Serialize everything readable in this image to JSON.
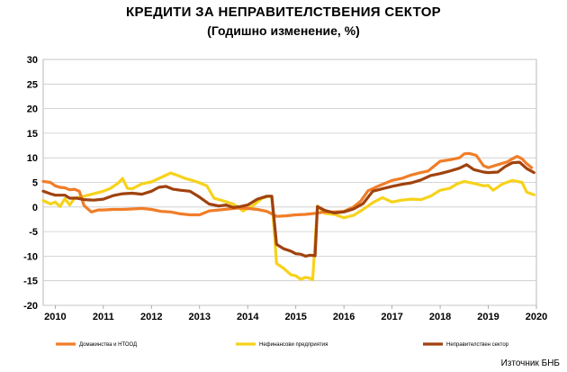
{
  "chart_data": {
    "type": "line",
    "title": "КРЕДИТИ ЗА НЕПРАВИТЕЛСТВЕНИЯ СЕКТОР",
    "subtitle": "(Годишно изменение, %)",
    "xlabel": "",
    "ylabel": "",
    "ylim": [
      -20,
      30
    ],
    "yticks": [
      30,
      25,
      20,
      15,
      10,
      5,
      0,
      -5,
      -10,
      -15,
      -20
    ],
    "xlim": [
      2009.75,
      2020.0
    ],
    "xticks": [
      2010,
      2011,
      2012,
      2013,
      2014,
      2015,
      2016,
      2017,
      2018,
      2019,
      2020
    ],
    "grid": "horizontal",
    "legend_position": "bottom",
    "source": "Източник БНБ",
    "series": [
      {
        "name": "Домакинства и НТООД",
        "color": "#F07D28",
        "x": [
          2009.75,
          2009.9,
          2010.0,
          2010.1,
          2010.2,
          2010.3,
          2010.4,
          2010.5,
          2010.6,
          2010.75,
          2010.9,
          2011.0,
          2011.2,
          2011.4,
          2011.6,
          2011.8,
          2012.0,
          2012.2,
          2012.4,
          2012.6,
          2012.8,
          2013.0,
          2013.2,
          2013.4,
          2013.6,
          2013.8,
          2014.0,
          2014.2,
          2014.4,
          2014.5,
          2014.6,
          2014.8,
          2015.0,
          2015.2,
          2015.4,
          2015.6,
          2015.8,
          2016.0,
          2016.2,
          2016.35,
          2016.5,
          2016.7,
          2016.9,
          2017.0,
          2017.2,
          2017.4,
          2017.6,
          2017.75,
          2017.9,
          2018.0,
          2018.2,
          2018.4,
          2018.5,
          2018.6,
          2018.75,
          2018.9,
          2019.0,
          2019.2,
          2019.4,
          2019.5,
          2019.6,
          2019.7,
          2019.8,
          2019.9
        ],
        "values": [
          5.2,
          5.0,
          4.3,
          4.0,
          3.9,
          3.5,
          3.6,
          3.2,
          0.3,
          -1.0,
          -0.6,
          -0.6,
          -0.5,
          -0.5,
          -0.4,
          -0.3,
          -0.5,
          -0.9,
          -1.0,
          -1.4,
          -1.6,
          -1.6,
          -0.8,
          -0.6,
          -0.4,
          -0.2,
          -0.3,
          -0.5,
          -0.9,
          -1.4,
          -1.9,
          -1.8,
          -1.6,
          -1.5,
          -1.3,
          -1.0,
          -1.0,
          -0.9,
          0.0,
          1.2,
          3.3,
          4.2,
          5.0,
          5.4,
          5.8,
          6.5,
          7.0,
          7.3,
          8.5,
          9.3,
          9.6,
          10.0,
          10.8,
          10.9,
          10.5,
          8.4,
          8.0,
          8.6,
          9.2,
          9.8,
          10.3,
          9.8,
          8.8,
          8.0
        ]
      },
      {
        "name": "Нефинансови предприятия",
        "color": "#F7D21B",
        "x": [
          2009.75,
          2009.9,
          2010.0,
          2010.1,
          2010.2,
          2010.3,
          2010.4,
          2010.6,
          2010.8,
          2011.0,
          2011.15,
          2011.3,
          2011.4,
          2011.5,
          2011.6,
          2011.8,
          2012.0,
          2012.2,
          2012.4,
          2012.55,
          2012.7,
          2012.85,
          2013.0,
          2013.15,
          2013.3,
          2013.5,
          2013.7,
          2013.9,
          2014.1,
          2014.3,
          2014.45,
          2014.5,
          2014.6,
          2014.75,
          2014.9,
          2015.0,
          2015.1,
          2015.2,
          2015.3,
          2015.35,
          2015.45,
          2015.6,
          2015.8,
          2016.0,
          2016.2,
          2016.4,
          2016.6,
          2016.8,
          2017.0,
          2017.2,
          2017.4,
          2017.6,
          2017.8,
          2018.0,
          2018.2,
          2018.35,
          2018.5,
          2018.7,
          2018.9,
          2019.0,
          2019.1,
          2019.3,
          2019.5,
          2019.7,
          2019.8,
          2019.95
        ],
        "values": [
          1.3,
          0.6,
          1.0,
          0.1,
          1.7,
          0.4,
          1.8,
          2.2,
          2.7,
          3.2,
          3.8,
          4.8,
          5.8,
          3.8,
          3.7,
          4.7,
          5.1,
          6.0,
          6.9,
          6.4,
          5.8,
          5.4,
          4.9,
          4.3,
          1.8,
          1.2,
          0.6,
          -0.8,
          0.2,
          1.8,
          2.2,
          2.0,
          -11.5,
          -12.5,
          -13.8,
          -14.0,
          -14.7,
          -14.3,
          -14.5,
          -14.8,
          0.2,
          -1.3,
          -1.5,
          -2.2,
          -1.7,
          -0.5,
          0.9,
          1.9,
          1.0,
          1.4,
          1.6,
          1.5,
          2.2,
          3.4,
          3.8,
          4.7,
          5.2,
          4.8,
          4.3,
          4.4,
          3.4,
          4.7,
          5.4,
          5.0,
          3.0,
          2.5
        ]
      },
      {
        "name": "Неправителствен сектор",
        "color": "#A0420E",
        "x": [
          2009.75,
          2009.9,
          2010.0,
          2010.1,
          2010.2,
          2010.3,
          2010.45,
          2010.6,
          2010.8,
          2011.0,
          2011.2,
          2011.4,
          2011.6,
          2011.8,
          2012.0,
          2012.15,
          2012.3,
          2012.45,
          2012.6,
          2012.8,
          2013.0,
          2013.2,
          2013.4,
          2013.55,
          2013.7,
          2013.85,
          2014.0,
          2014.2,
          2014.4,
          2014.5,
          2014.6,
          2014.75,
          2014.9,
          2015.0,
          2015.1,
          2015.2,
          2015.3,
          2015.4,
          2015.45,
          2015.6,
          2015.8,
          2016.0,
          2016.2,
          2016.4,
          2016.6,
          2016.8,
          2017.0,
          2017.2,
          2017.4,
          2017.6,
          2017.8,
          2018.0,
          2018.2,
          2018.4,
          2018.55,
          2018.7,
          2018.9,
          2019.0,
          2019.2,
          2019.35,
          2019.5,
          2019.65,
          2019.8,
          2019.95
        ],
        "values": [
          3.2,
          2.7,
          2.4,
          2.4,
          2.4,
          1.8,
          1.8,
          1.5,
          1.4,
          1.6,
          2.3,
          2.7,
          2.8,
          2.6,
          3.2,
          4.0,
          4.2,
          3.6,
          3.4,
          3.2,
          2.0,
          0.6,
          0.2,
          0.4,
          -0.1,
          0.1,
          0.4,
          1.6,
          2.2,
          2.2,
          -7.6,
          -8.5,
          -9.0,
          -9.5,
          -9.6,
          -10.0,
          -9.8,
          -9.9,
          0.1,
          -0.7,
          -1.2,
          -1.0,
          -0.4,
          0.7,
          3.2,
          3.7,
          4.2,
          4.6,
          4.9,
          5.5,
          6.4,
          6.8,
          7.3,
          7.9,
          8.6,
          7.6,
          7.1,
          7.0,
          7.1,
          8.2,
          9.0,
          9.1,
          7.8,
          7.0
        ]
      }
    ]
  }
}
